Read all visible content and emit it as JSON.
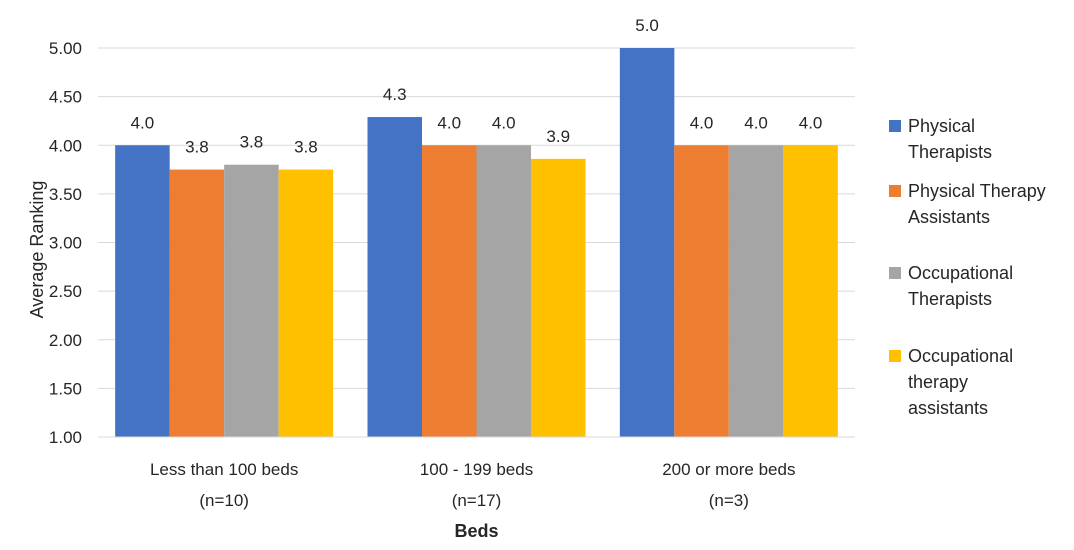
{
  "chart_data": {
    "type": "bar",
    "title": "",
    "xlabel": "Beds",
    "ylabel": "Average Ranking",
    "ylim": [
      1.0,
      5.0
    ],
    "y_ticks": [
      "1.00",
      "1.50",
      "2.00",
      "2.50",
      "3.00",
      "3.50",
      "4.00",
      "4.50",
      "5.00"
    ],
    "grid": true,
    "legend_position": "right",
    "categories": [
      [
        "Less than 100 beds",
        "(n=10)"
      ],
      [
        "100 - 199 beds",
        "(n=17)"
      ],
      [
        "200 or more beds",
        "(n=3)"
      ]
    ],
    "series": [
      {
        "name": [
          "Physical",
          "Therapists"
        ],
        "color": "#4472C4",
        "values": [
          4.0,
          4.29,
          5.0
        ],
        "labels": [
          "4.0",
          "4.3",
          "5.0"
        ]
      },
      {
        "name": [
          "Physical Therapy",
          "Assistants"
        ],
        "color": "#ED7D31",
        "values": [
          3.75,
          4.0,
          4.0
        ],
        "labels": [
          "3.8",
          "4.0",
          "4.0"
        ]
      },
      {
        "name": [
          "Occupational",
          "Therapists"
        ],
        "color": "#A5A5A5",
        "values": [
          3.8,
          4.0,
          4.0
        ],
        "labels": [
          "3.8",
          "4.0",
          "4.0"
        ]
      },
      {
        "name": [
          "Occupational",
          "therapy",
          "assistants"
        ],
        "color": "#FFC000",
        "values": [
          3.75,
          3.86,
          4.0
        ],
        "labels": [
          "3.8",
          "3.9",
          "4.0"
        ]
      }
    ]
  }
}
